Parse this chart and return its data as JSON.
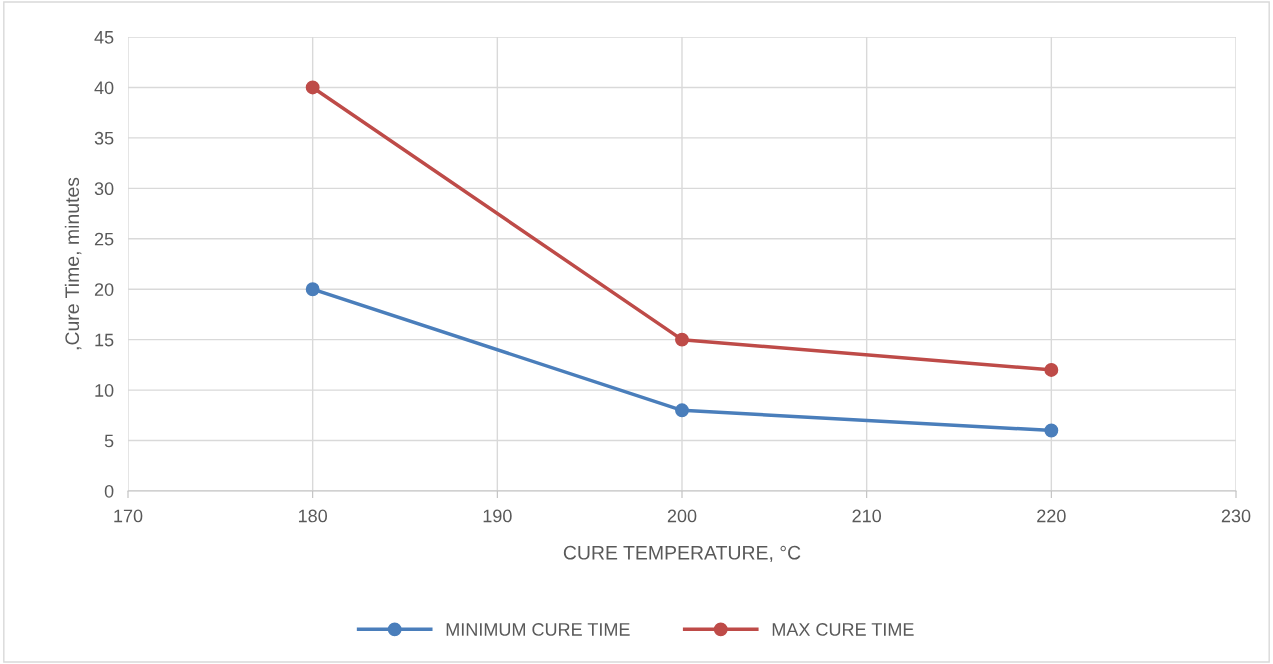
{
  "chart_data": {
    "type": "line",
    "xlabel": "CURE TEMPERATURE, °C",
    "ylabel": ",Cure Time, minutes",
    "x": [
      180,
      200,
      220
    ],
    "series": [
      {
        "name": "MINIMUM CURE TIME",
        "color": "#4a7ebb",
        "values": [
          20,
          8,
          6
        ]
      },
      {
        "name": "MAX CURE TIME",
        "color": "#be4b48",
        "values": [
          40,
          15,
          12
        ]
      }
    ],
    "xlim": [
      170,
      230
    ],
    "xticks": [
      170,
      180,
      190,
      200,
      210,
      220,
      230
    ],
    "ylim": [
      0,
      45
    ],
    "yticks": [
      0,
      5,
      10,
      15,
      20,
      25,
      30,
      35,
      40,
      45
    ],
    "grid": true,
    "legend": "bottom",
    "marker": "circle",
    "line_style": "solid"
  }
}
